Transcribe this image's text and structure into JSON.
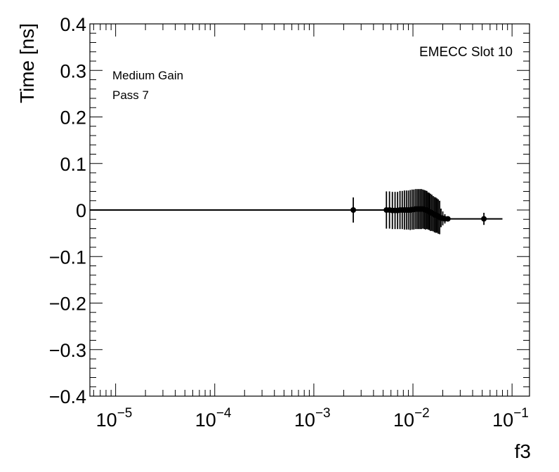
{
  "chart_data": {
    "type": "scatter",
    "xlabel": "f3",
    "ylabel": "Time [ns]",
    "xscale": "log",
    "xlim": [
      5.5e-06,
      0.15
    ],
    "ylim": [
      -0.4,
      0.4
    ],
    "yticks": [
      {
        "value": -0.4,
        "label": "−0.4"
      },
      {
        "value": -0.3,
        "label": "−0.3"
      },
      {
        "value": -0.2,
        "label": "−0.2"
      },
      {
        "value": -0.1,
        "label": "−0.1"
      },
      {
        "value": 0,
        "label": "0"
      },
      {
        "value": 0.1,
        "label": "0.1"
      },
      {
        "value": 0.2,
        "label": "0.2"
      },
      {
        "value": 0.3,
        "label": "0.3"
      },
      {
        "value": 0.4,
        "label": "0.4"
      }
    ],
    "xticks": [
      {
        "value": 1e-05,
        "base": "10",
        "exp": "−5"
      },
      {
        "value": 0.0001,
        "base": "10",
        "exp": "−4"
      },
      {
        "value": 0.001,
        "base": "10",
        "exp": "−3"
      },
      {
        "value": 0.01,
        "base": "10",
        "exp": "−2"
      },
      {
        "value": 0.1,
        "base": "10",
        "exp": "−1"
      }
    ],
    "annotations": {
      "top_right": "EMECC Slot 10",
      "line1": "Medium Gain",
      "line2": "Pass 7"
    },
    "grid": false,
    "points": [
      {
        "x": 0.0025,
        "y": 0.0,
        "err": 0.027
      },
      {
        "x": 0.0054,
        "y": 0.0,
        "err": 0.04
      },
      {
        "x": 0.0058,
        "y": 0.0,
        "err": 0.04
      },
      {
        "x": 0.0062,
        "y": -0.001,
        "err": 0.04
      },
      {
        "x": 0.0066,
        "y": -0.001,
        "err": 0.04
      },
      {
        "x": 0.007,
        "y": -0.001,
        "err": 0.04
      },
      {
        "x": 0.0074,
        "y": 0.0,
        "err": 0.041
      },
      {
        "x": 0.0078,
        "y": 0.0,
        "err": 0.041
      },
      {
        "x": 0.0082,
        "y": 0.0,
        "err": 0.042
      },
      {
        "x": 0.0086,
        "y": 0.0,
        "err": 0.042
      },
      {
        "x": 0.009,
        "y": 0.0,
        "err": 0.042
      },
      {
        "x": 0.0094,
        "y": 0.0,
        "err": 0.043
      },
      {
        "x": 0.0098,
        "y": 0.001,
        "err": 0.043
      },
      {
        "x": 0.0102,
        "y": 0.001,
        "err": 0.043
      },
      {
        "x": 0.0106,
        "y": 0.002,
        "err": 0.043
      },
      {
        "x": 0.011,
        "y": 0.002,
        "err": 0.043
      },
      {
        "x": 0.0114,
        "y": 0.002,
        "err": 0.043
      },
      {
        "x": 0.0118,
        "y": 0.002,
        "err": 0.043
      },
      {
        "x": 0.0122,
        "y": 0.002,
        "err": 0.043
      },
      {
        "x": 0.0126,
        "y": 0.002,
        "err": 0.042
      },
      {
        "x": 0.013,
        "y": 0.001,
        "err": 0.042
      },
      {
        "x": 0.0134,
        "y": 0.0,
        "err": 0.042
      },
      {
        "x": 0.0138,
        "y": 0.0,
        "err": 0.041
      },
      {
        "x": 0.0142,
        "y": -0.002,
        "err": 0.04
      },
      {
        "x": 0.0146,
        "y": -0.003,
        "err": 0.04
      },
      {
        "x": 0.015,
        "y": -0.005,
        "err": 0.04
      },
      {
        "x": 0.0155,
        "y": -0.006,
        "err": 0.039
      },
      {
        "x": 0.016,
        "y": -0.008,
        "err": 0.038
      },
      {
        "x": 0.0165,
        "y": -0.01,
        "err": 0.038
      },
      {
        "x": 0.017,
        "y": -0.011,
        "err": 0.038
      },
      {
        "x": 0.0175,
        "y": -0.012,
        "err": 0.037
      },
      {
        "x": 0.018,
        "y": -0.014,
        "err": 0.037
      },
      {
        "x": 0.0186,
        "y": -0.016,
        "err": 0.036
      },
      {
        "x": 0.0192,
        "y": -0.017,
        "err": 0.02
      },
      {
        "x": 0.02,
        "y": -0.018,
        "err": 0.015
      },
      {
        "x": 0.021,
        "y": -0.019,
        "err": 0.01
      },
      {
        "x": 0.0225,
        "y": -0.019,
        "err": 0.005
      },
      {
        "x": 0.052,
        "y": -0.019,
        "err": 0.013
      }
    ],
    "curve": [
      {
        "x": 5.5e-06,
        "y": 0.0
      },
      {
        "x": 0.0025,
        "y": 0.0
      },
      {
        "x": 0.0054,
        "y": 0.0
      },
      {
        "x": 0.0074,
        "y": 0.0
      },
      {
        "x": 0.0098,
        "y": 0.001
      },
      {
        "x": 0.011,
        "y": 0.002
      },
      {
        "x": 0.0126,
        "y": 0.002
      },
      {
        "x": 0.0134,
        "y": 0.0
      },
      {
        "x": 0.015,
        "y": -0.005
      },
      {
        "x": 0.017,
        "y": -0.011
      },
      {
        "x": 0.0192,
        "y": -0.017
      },
      {
        "x": 0.0225,
        "y": -0.019
      },
      {
        "x": 0.052,
        "y": -0.019
      },
      {
        "x": 0.08,
        "y": -0.019
      }
    ]
  }
}
